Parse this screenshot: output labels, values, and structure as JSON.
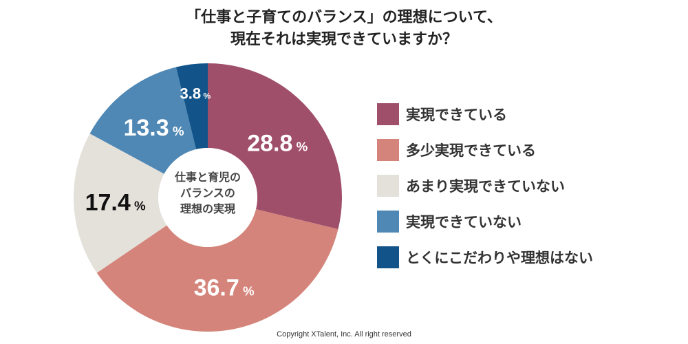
{
  "title_lines": [
    "「仕事と子育てのバランス」の理想について、",
    "現在それは実現できていますか？"
  ],
  "center_label_lines": [
    "仕事と育児の",
    "バランスの",
    "理想の実現"
  ],
  "copyright": "Copyright XTalent, Inc. All right reserved",
  "chart_data": {
    "type": "pie",
    "donut": true,
    "unit": "%",
    "legend_position": "right",
    "categories": [
      "実現できている",
      "多少実現できている",
      "あまり実現できていない",
      "実現できていない",
      "とくにこだわりや理想はない"
    ],
    "values": [
      28.8,
      36.7,
      17.4,
      13.3,
      3.8
    ],
    "labels": [
      "28.8",
      "36.7",
      "17.4",
      "13.3",
      "3.8"
    ],
    "colors": [
      "#A04F6A",
      "#D4847A",
      "#E4E0DA",
      "#4F88B5",
      "#12548A"
    ],
    "label_colors": [
      "#ffffff",
      "#ffffff",
      "#111111",
      "#ffffff",
      "#ffffff"
    ]
  }
}
